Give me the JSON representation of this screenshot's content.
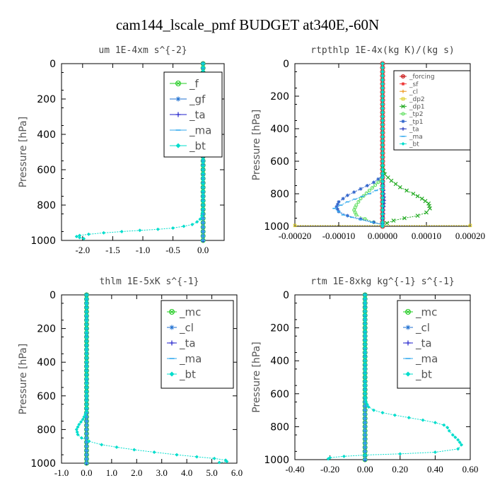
{
  "figure": {
    "title": "cam144_lscale_pmf  BUDGET at340E,-60N"
  },
  "chart_data": [
    {
      "type": "line",
      "title": "um  1E-4xm s^{-2}",
      "ylabel": "Pressure [hPa]",
      "yticks": [
        0,
        200,
        400,
        600,
        800,
        1000
      ],
      "ylim": [
        1000,
        0
      ],
      "xlim": [
        -2.35,
        0.35
      ],
      "xticks": [
        -2.0,
        -1.5,
        -1.0,
        -0.5,
        0.0
      ],
      "xtick_labels": [
        "-2.0",
        "-1.5",
        "-1.0",
        "-0.5",
        "0.0"
      ],
      "grid": false,
      "legend": {
        "position": "top-right",
        "font_size": 15,
        "entries": [
          "_f",
          "_gf",
          "_ta",
          "_ma",
          "_bt"
        ]
      },
      "series": [
        {
          "name": "_f",
          "color": "#22cc22",
          "marker": "circle-x",
          "x": [
            0,
            0
          ],
          "y": [
            0,
            1000
          ]
        },
        {
          "name": "_gf",
          "color": "#1e6fd0",
          "marker": "asterisk",
          "x": [
            0,
            0
          ],
          "y": [
            0,
            1000
          ]
        },
        {
          "name": "_ta",
          "color": "#2222cc",
          "marker": "plus",
          "x": [
            0,
            0
          ],
          "y": [
            0,
            1000
          ]
        },
        {
          "name": "_ma",
          "color": "#33aaee",
          "marker": "dash",
          "x": [
            0,
            0
          ],
          "y": [
            0,
            1000
          ]
        },
        {
          "name": "_bt",
          "color": "#00ddcc",
          "marker": "diamond",
          "x": [
            0,
            0,
            -0.02,
            -0.05,
            -0.1,
            -0.18,
            -0.32,
            -0.5,
            -0.75,
            -1.05,
            -1.35,
            -1.65,
            -1.9,
            -2.05,
            -2.1,
            -2.05,
            -1.98
          ],
          "y": [
            0,
            820,
            860,
            880,
            895,
            910,
            920,
            930,
            937,
            943,
            950,
            957,
            965,
            972,
            978,
            984,
            990
          ]
        }
      ]
    },
    {
      "type": "line",
      "title": "rtpthlp  1E-4x(kg K)/(kg s)",
      "ylabel": "Pressure [hPa]",
      "yticks": [
        0,
        200,
        400,
        600,
        800,
        1000
      ],
      "ylim": [
        1000,
        0
      ],
      "xlim": [
        -0.0002,
        0.0002
      ],
      "xticks": [
        -0.0002,
        -0.0001,
        0,
        0.0001,
        0.0002
      ],
      "xtick_labels": [
        "-0.00020",
        "-0.00010",
        "0.00000",
        "0.00010",
        "0.00020"
      ],
      "grid": false,
      "legend": {
        "position": "top-right",
        "font_size": 9,
        "entries": [
          "_forcing",
          "_sf",
          "_cl",
          "_dp2",
          "_dp1",
          "_tp2",
          "_tp1",
          "_ta",
          "_ma",
          "_bt"
        ]
      },
      "series": [
        {
          "name": "_forcing",
          "color": "#cc2222",
          "marker": "circle-x",
          "x": [
            0,
            0
          ],
          "y": [
            0,
            1000
          ]
        },
        {
          "name": "_sf",
          "color": "#ee3333",
          "marker": "asterisk",
          "x": [
            0,
            0
          ],
          "y": [
            0,
            1000
          ]
        },
        {
          "name": "_cl",
          "color": "#ee9922",
          "marker": "plus",
          "x": [
            0,
            0
          ],
          "y": [
            0,
            1000
          ]
        },
        {
          "name": "_dp2",
          "color": "#ddcc22",
          "marker": "square",
          "x": [
            -0.0002,
            0.0002
          ],
          "y": [
            995,
            995
          ]
        },
        {
          "name": "_dp1",
          "color": "#22aa22",
          "marker": "cross",
          "x": [
            0,
            5e-06,
            2e-05,
            4e-05,
            7e-05,
            9e-05,
            0.000105,
            0.000108,
            0.0001,
            8e-05,
            5e-05,
            2.5e-05,
            1e-05,
            0
          ],
          "y": [
            640,
            680,
            720,
            760,
            800,
            830,
            860,
            890,
            915,
            935,
            950,
            965,
            980,
            990
          ]
        },
        {
          "name": "_tp2",
          "color": "#55dd55",
          "marker": "circle",
          "x": [
            0,
            -1e-05,
            -3e-05,
            -5e-05,
            -6e-05,
            -6.5e-05,
            -6e-05,
            -4e-05,
            -2e-05,
            0
          ],
          "y": [
            690,
            730,
            780,
            830,
            870,
            900,
            930,
            955,
            975,
            990
          ]
        },
        {
          "name": "_tp1",
          "color": "#3366cc",
          "marker": "asterisk",
          "x": [
            0,
            -2e-05,
            -5e-05,
            -8e-05,
            -0.0001,
            -0.000105,
            -0.0001,
            -8e-05,
            -5e-05,
            -2e-05,
            0
          ],
          "y": [
            690,
            730,
            770,
            810,
            850,
            880,
            910,
            935,
            955,
            975,
            990
          ]
        },
        {
          "name": "_ta",
          "color": "#2233bb",
          "marker": "plus",
          "x": [
            0,
            2e-06,
            4e-06,
            2e-06,
            0
          ],
          "y": [
            700,
            780,
            840,
            900,
            980
          ]
        },
        {
          "name": "_ma",
          "color": "#33aaee",
          "marker": "dash",
          "x": [
            0,
            -3e-05,
            -8e-05,
            -0.00011,
            -9e-05,
            -5e-05,
            0
          ],
          "y": [
            760,
            800,
            850,
            890,
            930,
            960,
            990
          ]
        },
        {
          "name": "_bt",
          "color": "#00ddcc",
          "marker": "diamond",
          "x": [
            0,
            0
          ],
          "y": [
            0,
            1000
          ]
        }
      ]
    },
    {
      "type": "line",
      "title": "thlm  1E-5xK s^{-1}",
      "ylabel": "Pressure [hPa]",
      "yticks": [
        0,
        200,
        400,
        600,
        800,
        1000
      ],
      "ylim": [
        1000,
        0
      ],
      "xlim": [
        -1.0,
        6.0
      ],
      "xticks": [
        -1.0,
        0.0,
        1.0,
        2.0,
        3.0,
        4.0,
        5.0,
        6.0
      ],
      "xtick_labels": [
        "-1.0",
        "0.0",
        "1.0",
        "2.0",
        "3.0",
        "4.0",
        "5.0",
        "6.0"
      ],
      "grid": false,
      "legend": {
        "position": "top-right",
        "font_size": 15,
        "entries": [
          "_mc",
          "_cl",
          "_ta",
          "_ma",
          "_bt"
        ]
      },
      "series": [
        {
          "name": "_mc",
          "color": "#22cc22",
          "marker": "circle-x",
          "x": [
            0,
            0
          ],
          "y": [
            0,
            1000
          ]
        },
        {
          "name": "_cl",
          "color": "#1e6fd0",
          "marker": "asterisk",
          "x": [
            0,
            0
          ],
          "y": [
            0,
            1000
          ]
        },
        {
          "name": "_ta",
          "color": "#2222cc",
          "marker": "plus",
          "x": [
            0,
            0
          ],
          "y": [
            0,
            1000
          ]
        },
        {
          "name": "_ma",
          "color": "#33aaee",
          "marker": "dash",
          "x": [
            0,
            0
          ],
          "y": [
            0,
            1000
          ]
        },
        {
          "name": "_bt",
          "color": "#00ddcc",
          "marker": "diamond",
          "x": [
            0,
            0,
            -0.05,
            -0.15,
            -0.3,
            -0.4,
            -0.35,
            -0.2,
            0.1,
            0.6,
            1.2,
            1.9,
            2.7,
            3.6,
            4.4,
            5.1,
            5.55,
            5.6,
            5.3
          ],
          "y": [
            0,
            690,
            710,
            740,
            770,
            800,
            830,
            850,
            870,
            890,
            905,
            920,
            935,
            950,
            962,
            972,
            982,
            990,
            996
          ]
        }
      ]
    },
    {
      "type": "line",
      "title": "rtm  1E-8xkg kg^{-1} s^{-1}",
      "ylabel": "Pressure [hPa]",
      "yticks": [
        0,
        200,
        400,
        600,
        800,
        1000
      ],
      "ylim": [
        1000,
        0
      ],
      "xlim": [
        -0.4,
        0.6
      ],
      "xticks": [
        -0.4,
        -0.2,
        0.0,
        0.2,
        0.4,
        0.6
      ],
      "xtick_labels": [
        "-0.40",
        "-0.20",
        "0.00",
        "0.20",
        "0.40",
        "0.60"
      ],
      "grid": false,
      "legend": {
        "position": "top-right",
        "font_size": 15,
        "entries": [
          "_mc",
          "_cl",
          "_ta",
          "_ma",
          "_bt"
        ]
      },
      "series": [
        {
          "name": "_mc",
          "color": "#22cc22",
          "marker": "circle-x",
          "x": [
            0,
            0
          ],
          "y": [
            0,
            1000
          ]
        },
        {
          "name": "_cl",
          "color": "#1e6fd0",
          "marker": "asterisk",
          "x": [
            0,
            0
          ],
          "y": [
            0,
            1000
          ]
        },
        {
          "name": "_ta",
          "color": "#2222cc",
          "marker": "plus",
          "x": [
            0,
            0
          ],
          "y": [
            0,
            1000
          ]
        },
        {
          "name": "_ma",
          "color": "#33aaee",
          "marker": "dash",
          "x": [
            0,
            0
          ],
          "y": [
            0,
            1000
          ]
        },
        {
          "name": "_bt",
          "color": "#00ddcc",
          "marker": "diamond",
          "x": [
            0,
            0,
            0.005,
            0.02,
            0.05,
            0.1,
            0.17,
            0.25,
            0.33,
            0.4,
            0.45,
            0.47,
            0.48,
            0.5,
            0.53,
            0.55,
            0.53,
            0.4,
            0.2,
            0,
            -0.12,
            -0.2,
            -0.21
          ],
          "y": [
            0,
            620,
            650,
            680,
            700,
            715,
            730,
            745,
            760,
            775,
            790,
            805,
            825,
            850,
            880,
            910,
            935,
            955,
            965,
            972,
            980,
            988,
            995
          ]
        }
      ]
    }
  ]
}
